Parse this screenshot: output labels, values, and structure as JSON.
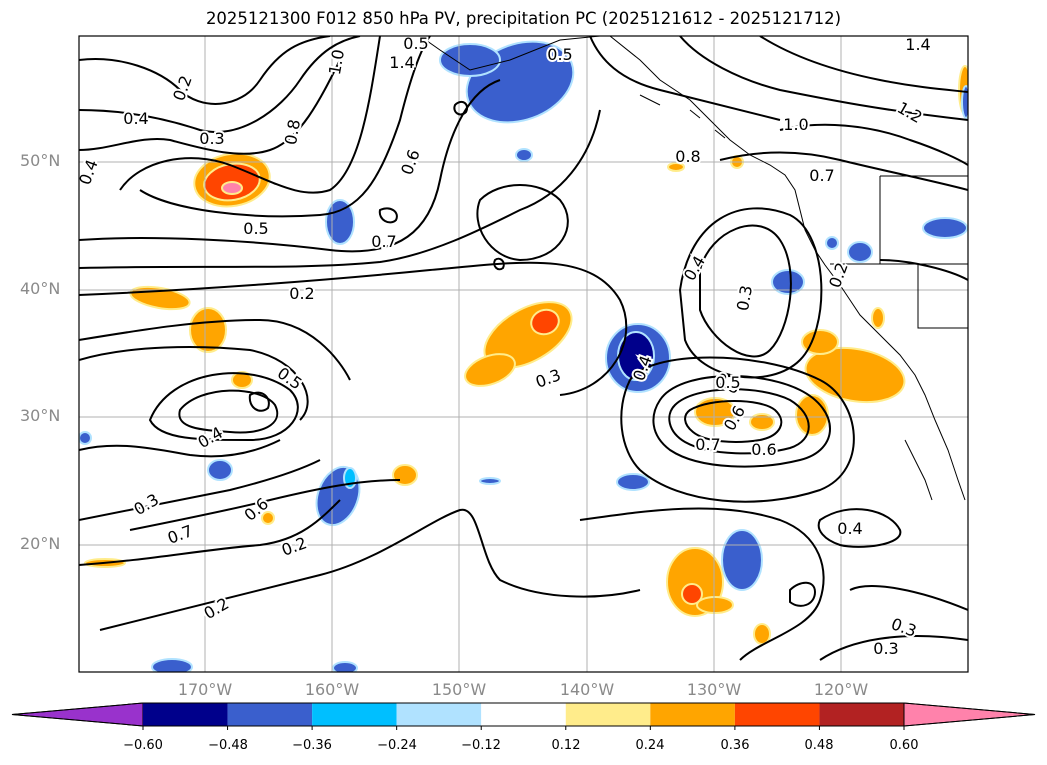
{
  "title": "2025121300 F012 850 hPa PV, precipitation PC (2025121612 - 2025121712)",
  "lat_labels": [
    "50°N",
    "40°N",
    "30°N",
    "20°N"
  ],
  "lon_labels": [
    "170°W",
    "160°W",
    "150°W",
    "140°W",
    "130°W",
    "120°W"
  ],
  "contour_labels": [
    "0.2",
    "0.4",
    "0.3",
    "0.4",
    "0.8",
    "1.0",
    "1.4",
    "0.6",
    "0.7",
    "0.5",
    "0.5",
    "1.4",
    "1.2",
    "1.0",
    "0.8",
    "0.7",
    "0.5",
    "0.3",
    "0.2",
    "0.4",
    "0.3",
    "0.6",
    "0.7",
    "0.5",
    "0.4",
    "0.3",
    "0.3",
    "0.4",
    "0.5",
    "0.6",
    "0.7",
    "0.6",
    "0.3",
    "0.4",
    "0.2",
    "0.2",
    "0.2",
    "0.3"
  ],
  "colorbar": {
    "ticks": [
      "−0.60",
      "−0.48",
      "−0.36",
      "−0.24",
      "−0.12",
      "0.12",
      "0.24",
      "0.36",
      "0.48",
      "0.60"
    ],
    "colors": [
      "#9932cc",
      "#00008b",
      "#3a5fcd",
      "#00bfff",
      "#b0e2ff",
      "#ffffff",
      "#ffec8b",
      "#ffa500",
      "#ff4500",
      "#b22222",
      "#ff82ab"
    ]
  }
}
